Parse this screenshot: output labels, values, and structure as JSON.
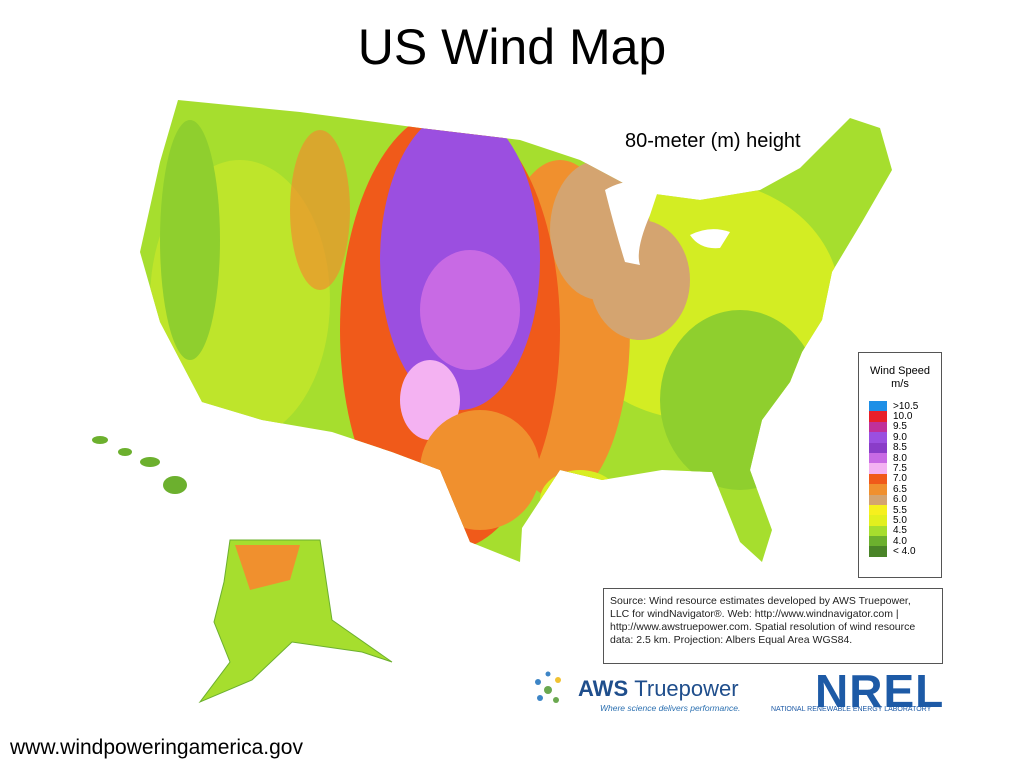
{
  "title": "US Wind Map",
  "subtitle": "80-meter (m) height",
  "legend": {
    "title": "Wind Speed",
    "unit": "m/s",
    "items": [
      {
        "label": ">10.5",
        "color": "#1e8fe6"
      },
      {
        "label": "10.0",
        "color": "#e8202a"
      },
      {
        "label": "9.5",
        "color": "#c0309a"
      },
      {
        "label": "9.0",
        "color": "#9b4fe0"
      },
      {
        "label": "8.5",
        "color": "#8a3cc8"
      },
      {
        "label": "8.0",
        "color": "#c86ae4"
      },
      {
        "label": "7.5",
        "color": "#f4b2f2"
      },
      {
        "label": "7.0",
        "color": "#f05a1a"
      },
      {
        "label": "6.5",
        "color": "#f0902e"
      },
      {
        "label": "6.0",
        "color": "#d4a470"
      },
      {
        "label": "5.5",
        "color": "#f6f01e"
      },
      {
        "label": "5.0",
        "color": "#e2f01e"
      },
      {
        "label": "4.5",
        "color": "#a6de2e"
      },
      {
        "label": "4.0",
        "color": "#6cb02e"
      },
      {
        "label": "< 4.0",
        "color": "#4a8428"
      }
    ]
  },
  "source": [
    "Source: Wind resource estimates developed by AWS Truepower,",
    "LLC for windNavigator®. Web: http://www.windnavigator.com |",
    "http://www.awstruepower.com. Spatial resolution of wind resource",
    "data: 2.5 km. Projection: Albers Equal Area WGS84."
  ],
  "logos": {
    "aws": "AWS",
    "aws_suffix": "Truepower",
    "aws_tagline": "Where science delivers performance.",
    "nrel": "NREL",
    "nrel_tagline": "NATIONAL RENEWABLE ENERGY LABORATORY"
  },
  "footer": "www.windpoweringamerica.gov"
}
